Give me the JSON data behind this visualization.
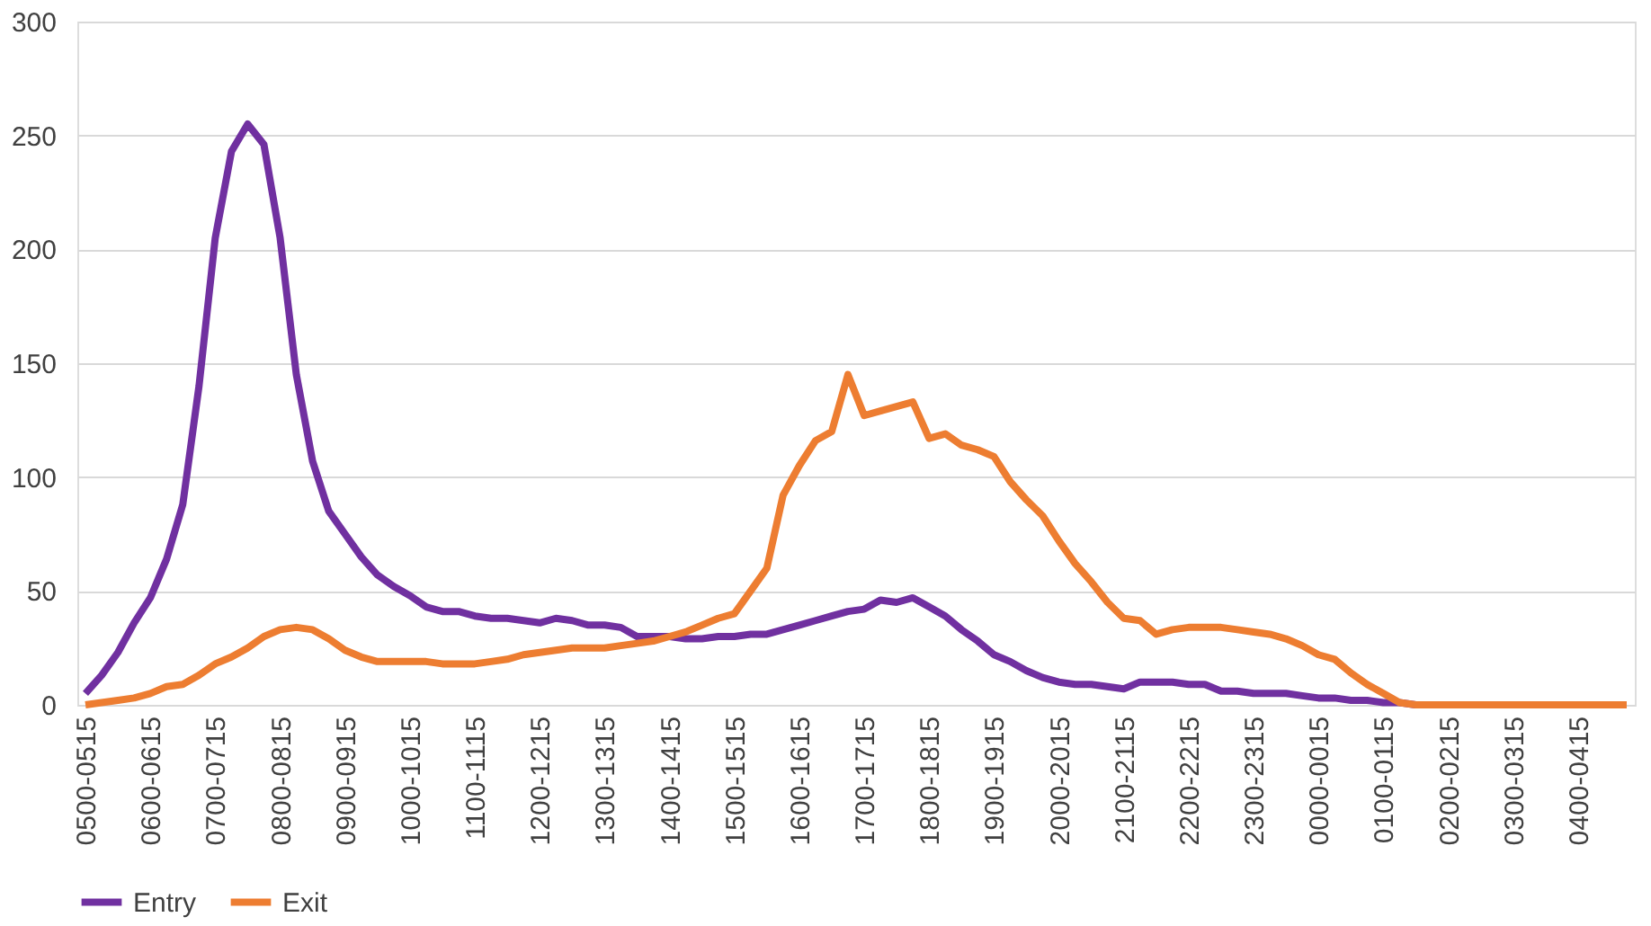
{
  "chart_data": {
    "type": "line",
    "categories": [
      "0500-0515",
      null,
      null,
      null,
      "0600-0615",
      null,
      null,
      null,
      "0700-0715",
      null,
      null,
      null,
      "0800-0815",
      null,
      null,
      null,
      "0900-0915",
      null,
      null,
      null,
      "1000-1015",
      null,
      null,
      null,
      "1100-1115",
      null,
      null,
      null,
      "1200-1215",
      null,
      null,
      null,
      "1300-1315",
      null,
      null,
      null,
      "1400-1415",
      null,
      null,
      null,
      "1500-1515",
      null,
      null,
      null,
      "1600-1615",
      null,
      null,
      null,
      "1700-1715",
      null,
      null,
      null,
      "1800-1815",
      null,
      null,
      null,
      "1900-1915",
      null,
      null,
      null,
      "2000-2015",
      null,
      null,
      null,
      "2100-2115",
      null,
      null,
      null,
      "2200-2215",
      null,
      null,
      null,
      "2300-2315",
      null,
      null,
      null,
      "0000-0015",
      null,
      null,
      null,
      "0100-0115",
      null,
      null,
      null,
      "0200-0215",
      null,
      null,
      null,
      "0300-0315",
      null,
      null,
      null,
      "0400-0415",
      null,
      null,
      null
    ],
    "series": [
      {
        "name": "Entry",
        "color": "#7030a0",
        "values": [
          5,
          13,
          23,
          36,
          47,
          64,
          88,
          140,
          205,
          243,
          255,
          246,
          205,
          145,
          107,
          85,
          75,
          65,
          57,
          52,
          48,
          43,
          41,
          41,
          39,
          38,
          38,
          37,
          36,
          38,
          37,
          35,
          35,
          34,
          30,
          30,
          30,
          29,
          29,
          30,
          30,
          31,
          31,
          33,
          35,
          37,
          39,
          41,
          42,
          46,
          45,
          47,
          43,
          39,
          33,
          28,
          22,
          19,
          15,
          12,
          10,
          9,
          9,
          8,
          7,
          10,
          10,
          10,
          9,
          9,
          6,
          6,
          5,
          5,
          5,
          4,
          3,
          3,
          2,
          2,
          1,
          1,
          0,
          null,
          null,
          null,
          null,
          null,
          null,
          null,
          null,
          null,
          null,
          null,
          null,
          null
        ]
      },
      {
        "name": "Exit",
        "color": "#ed7d31",
        "values": [
          0,
          1,
          2,
          3,
          5,
          8,
          9,
          13,
          18,
          21,
          25,
          30,
          33,
          34,
          33,
          29,
          24,
          21,
          19,
          19,
          19,
          19,
          18,
          18,
          18,
          19,
          20,
          22,
          23,
          24,
          25,
          25,
          25,
          26,
          27,
          28,
          30,
          32,
          35,
          38,
          40,
          50,
          60,
          92,
          105,
          116,
          120,
          145,
          127,
          129,
          131,
          133,
          117,
          119,
          114,
          112,
          109,
          98,
          90,
          83,
          72,
          62,
          54,
          45,
          38,
          37,
          31,
          33,
          34,
          34,
          34,
          33,
          32,
          31,
          29,
          26,
          22,
          20,
          14,
          9,
          5,
          1,
          0,
          0,
          0,
          0,
          0,
          0,
          0,
          0,
          0,
          0,
          0,
          0,
          0,
          0
        ]
      }
    ],
    "ylim": [
      0,
      300
    ],
    "yticks": [
      0,
      50,
      100,
      150,
      200,
      250,
      300
    ],
    "grid": "y",
    "legend": "bottom",
    "marker": "none",
    "line_style": "solid"
  }
}
